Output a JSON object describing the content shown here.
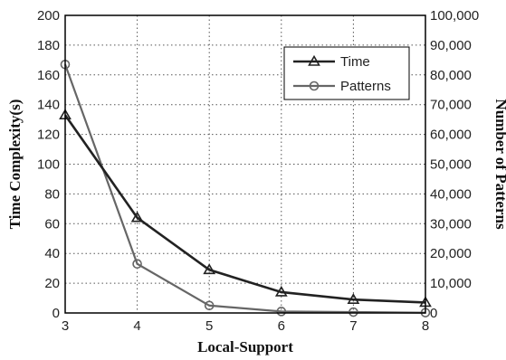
{
  "chart_data": {
    "type": "line",
    "x": [
      3,
      4,
      5,
      6,
      7,
      8
    ],
    "xlabel": "Local-Support",
    "xlim": [
      3,
      8
    ],
    "xticks": [
      "3",
      "4",
      "5",
      "6",
      "7",
      "8"
    ],
    "ylabel": "Time Complexity(s)",
    "ylim": [
      0,
      200
    ],
    "yticks": [
      "0",
      "20",
      "40",
      "60",
      "80",
      "100",
      "120",
      "140",
      "160",
      "180",
      "200"
    ],
    "y2label": "Number of Patterns",
    "y2lim": [
      0,
      100000
    ],
    "y2ticks": [
      "0",
      "10,000",
      "20,000",
      "30,000",
      "40,000",
      "50,000",
      "60,000",
      "70,000",
      "80,000",
      "90,000",
      "100,000"
    ],
    "grid": true,
    "legend_position": "top-right",
    "series": [
      {
        "name": "Time",
        "axis": "left",
        "marker": "triangle",
        "color": "#222222",
        "values": [
          133,
          64,
          29,
          14,
          9,
          7
        ]
      },
      {
        "name": "Patterns",
        "axis": "right",
        "marker": "circle",
        "color": "#666666",
        "values": [
          83500,
          16500,
          2500,
          500,
          300,
          100
        ]
      }
    ]
  }
}
